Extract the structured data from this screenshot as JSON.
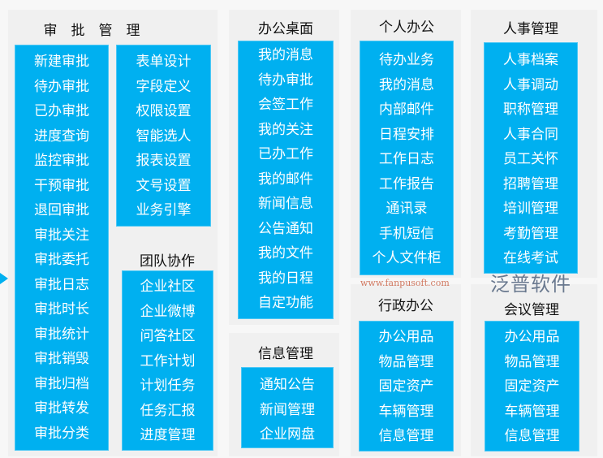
{
  "approval": {
    "title": "审　批　管　理",
    "col1": [
      "新建审批",
      "待办审批",
      "已办审批",
      "进度查询",
      "监控审批",
      "干预审批",
      "退回审批",
      "审批关注",
      "审批委托",
      "审批日志",
      "审批时长",
      "审批统计",
      "审批销毁",
      "审批归档",
      "审批转发",
      "审批分类"
    ],
    "col2": [
      "表单设计",
      "字段定义",
      "权限设置",
      "智能选人",
      "报表设置",
      "文号设置",
      "业务引擎"
    ]
  },
  "team": {
    "title": "团队协作",
    "items": [
      "企业社区",
      "企业微博",
      "问答社区",
      "工作计划",
      "计划任务",
      "任务汇报",
      "进度管理"
    ]
  },
  "desktop": {
    "title": "办公桌面",
    "items": [
      "我的消息",
      "待办审批",
      "会签工作",
      "我的关注",
      "已办工作",
      "我的邮件",
      "新闻信息",
      "公告通知",
      "我的文件",
      "我的日程",
      "自定功能"
    ]
  },
  "info": {
    "title": "信息管理",
    "items": [
      "通知公告",
      "新闻管理",
      "企业网盘"
    ]
  },
  "personal": {
    "title": "个人办公",
    "items": [
      "待办业务",
      "我的消息",
      "内部邮件",
      "日程安排",
      "工作日志",
      "工作报告",
      "通讯录",
      "手机短信",
      "个人文件柜"
    ]
  },
  "admin": {
    "title": "行政办公",
    "items": [
      "办公用品",
      "物品管理",
      "固定资产",
      "车辆管理",
      "信息管理"
    ]
  },
  "hr": {
    "title": "人事管理",
    "items": [
      "人事档案",
      "人事调动",
      "职称管理",
      "人事合同",
      "员工关怀",
      "招聘管理",
      "培训管理",
      "考勤管理",
      "在线考试"
    ]
  },
  "meeting": {
    "title": "会议管理",
    "items": [
      "办公用品",
      "物品管理",
      "固定资产",
      "车辆管理",
      "信息管理"
    ]
  },
  "watermark": {
    "cn": "泛普软件",
    "en": "www.fanpusoft.com"
  },
  "colors": {
    "accent": "#00b0f0",
    "panel": "#f0f0f0"
  }
}
